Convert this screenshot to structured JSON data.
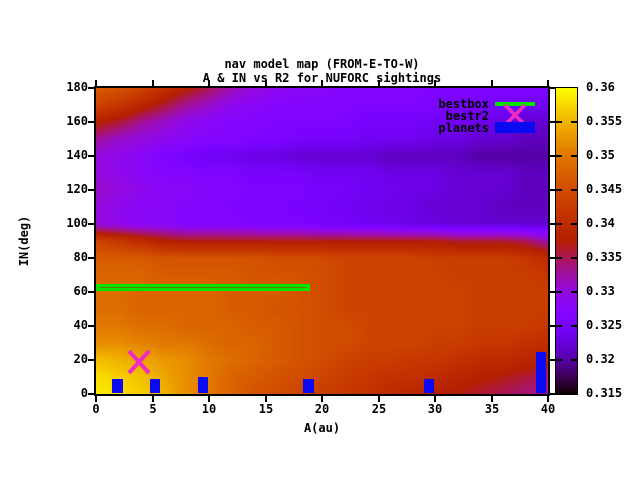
{
  "title": {
    "line1": "nav model map (FROM-E-TO-W)",
    "line2": "A & IN vs R2 for NUFORC sightings"
  },
  "chart_data": {
    "type": "heatmap",
    "xlabel": "A(au)",
    "ylabel": "IN(deg)",
    "xlim": [
      0,
      40
    ],
    "ylim": [
      0,
      180
    ],
    "clim": [
      0.315,
      0.36
    ],
    "xticks": [
      0,
      5,
      10,
      15,
      20,
      25,
      30,
      35,
      40
    ],
    "yticks": [
      0,
      20,
      40,
      60,
      80,
      100,
      120,
      140,
      160,
      180
    ],
    "colorbar_tick_values": [
      0.36,
      0.355,
      0.35,
      0.345,
      0.34,
      0.335,
      0.33,
      0.325,
      0.32,
      0.315
    ],
    "colorbar_tick_labels": [
      "0.36",
      "0.355",
      "0.35",
      "0.345",
      "0.34",
      "0.335",
      "0.33",
      "0.325",
      "0.32",
      "0.315"
    ],
    "palette": "gnuplot-default black-purple-violet-red-orange-yellow",
    "grid_x": [
      0,
      2,
      4,
      6,
      8,
      10,
      12,
      14,
      16,
      18,
      20,
      22,
      24,
      26,
      28,
      30,
      32,
      34,
      36,
      38,
      40
    ],
    "grid_y_top_to_bottom": [
      180,
      170,
      160,
      150,
      140,
      130,
      120,
      110,
      100,
      90,
      80,
      70,
      60,
      50,
      40,
      30,
      20,
      10,
      0
    ],
    "values_rows_y180_to_y0": [
      [
        0.347,
        0.346,
        0.344,
        0.341,
        0.338,
        0.335,
        0.332,
        0.33,
        0.329,
        0.328,
        0.328,
        0.327,
        0.327,
        0.327,
        0.327,
        0.326,
        0.326,
        0.326,
        0.326,
        0.326,
        0.326
      ],
      [
        0.344,
        0.342,
        0.339,
        0.336,
        0.333,
        0.331,
        0.329,
        0.328,
        0.327,
        0.327,
        0.327,
        0.327,
        0.326,
        0.326,
        0.326,
        0.326,
        0.325,
        0.325,
        0.325,
        0.324,
        0.324
      ],
      [
        0.338,
        0.336,
        0.333,
        0.331,
        0.329,
        0.328,
        0.327,
        0.327,
        0.326,
        0.326,
        0.326,
        0.326,
        0.325,
        0.325,
        0.325,
        0.324,
        0.324,
        0.323,
        0.323,
        0.322,
        0.322
      ],
      [
        0.333,
        0.331,
        0.33,
        0.329,
        0.328,
        0.327,
        0.327,
        0.326,
        0.326,
        0.325,
        0.325,
        0.325,
        0.324,
        0.324,
        0.324,
        0.323,
        0.323,
        0.322,
        0.322,
        0.321,
        0.321
      ],
      [
        0.33,
        0.329,
        0.328,
        0.326,
        0.325,
        0.324,
        0.324,
        0.323,
        0.323,
        0.322,
        0.322,
        0.322,
        0.322,
        0.321,
        0.321,
        0.321,
        0.321,
        0.32,
        0.32,
        0.32,
        0.32
      ],
      [
        0.33,
        0.329,
        0.328,
        0.327,
        0.327,
        0.326,
        0.326,
        0.325,
        0.325,
        0.325,
        0.324,
        0.324,
        0.324,
        0.323,
        0.323,
        0.323,
        0.322,
        0.322,
        0.322,
        0.321,
        0.321
      ],
      [
        0.331,
        0.33,
        0.329,
        0.328,
        0.328,
        0.327,
        0.327,
        0.326,
        0.326,
        0.326,
        0.325,
        0.325,
        0.324,
        0.324,
        0.323,
        0.323,
        0.322,
        0.322,
        0.322,
        0.321,
        0.321
      ],
      [
        0.33,
        0.329,
        0.328,
        0.328,
        0.327,
        0.327,
        0.326,
        0.326,
        0.326,
        0.325,
        0.325,
        0.324,
        0.324,
        0.323,
        0.323,
        0.322,
        0.322,
        0.322,
        0.321,
        0.321,
        0.321
      ],
      [
        0.33,
        0.329,
        0.328,
        0.328,
        0.327,
        0.327,
        0.327,
        0.326,
        0.326,
        0.326,
        0.325,
        0.325,
        0.324,
        0.324,
        0.323,
        0.323,
        0.322,
        0.322,
        0.322,
        0.322,
        0.322
      ],
      [
        0.344,
        0.342,
        0.34,
        0.338,
        0.337,
        0.337,
        0.337,
        0.337,
        0.337,
        0.337,
        0.337,
        0.337,
        0.337,
        0.337,
        0.337,
        0.337,
        0.336,
        0.336,
        0.336,
        0.335,
        0.332
      ],
      [
        0.347,
        0.347,
        0.347,
        0.346,
        0.346,
        0.346,
        0.346,
        0.346,
        0.345,
        0.345,
        0.345,
        0.344,
        0.344,
        0.344,
        0.344,
        0.343,
        0.343,
        0.343,
        0.343,
        0.342,
        0.34
      ],
      [
        0.348,
        0.348,
        0.348,
        0.347,
        0.347,
        0.347,
        0.347,
        0.346,
        0.346,
        0.346,
        0.345,
        0.344,
        0.344,
        0.344,
        0.344,
        0.344,
        0.343,
        0.343,
        0.343,
        0.343,
        0.342
      ],
      [
        0.349,
        0.349,
        0.348,
        0.348,
        0.348,
        0.348,
        0.347,
        0.347,
        0.347,
        0.346,
        0.345,
        0.344,
        0.344,
        0.344,
        0.344,
        0.344,
        0.344,
        0.343,
        0.343,
        0.343,
        0.343
      ],
      [
        0.349,
        0.349,
        0.348,
        0.348,
        0.348,
        0.348,
        0.347,
        0.347,
        0.346,
        0.346,
        0.345,
        0.344,
        0.344,
        0.344,
        0.344,
        0.344,
        0.344,
        0.343,
        0.343,
        0.343,
        0.343
      ],
      [
        0.35,
        0.35,
        0.349,
        0.349,
        0.348,
        0.348,
        0.348,
        0.347,
        0.347,
        0.346,
        0.345,
        0.345,
        0.344,
        0.344,
        0.344,
        0.344,
        0.344,
        0.343,
        0.343,
        0.343,
        0.342
      ],
      [
        0.352,
        0.352,
        0.351,
        0.35,
        0.35,
        0.349,
        0.348,
        0.348,
        0.347,
        0.346,
        0.345,
        0.345,
        0.344,
        0.344,
        0.344,
        0.343,
        0.343,
        0.342,
        0.342,
        0.341,
        0.34
      ],
      [
        0.356,
        0.355,
        0.354,
        0.353,
        0.352,
        0.35,
        0.349,
        0.348,
        0.347,
        0.346,
        0.345,
        0.344,
        0.343,
        0.343,
        0.342,
        0.342,
        0.341,
        0.34,
        0.34,
        0.339,
        0.338
      ],
      [
        0.358,
        0.357,
        0.356,
        0.354,
        0.352,
        0.35,
        0.348,
        0.347,
        0.346,
        0.345,
        0.344,
        0.343,
        0.342,
        0.341,
        0.341,
        0.34,
        0.339,
        0.338,
        0.337,
        0.336,
        0.334
      ],
      [
        0.359,
        0.358,
        0.357,
        0.355,
        0.352,
        0.35,
        0.348,
        0.346,
        0.345,
        0.344,
        0.343,
        0.342,
        0.341,
        0.34,
        0.339,
        0.338,
        0.337,
        0.336,
        0.335,
        0.334,
        0.333
      ]
    ],
    "overlays": {
      "bestbox": {
        "x0": 0,
        "x1": 18.9,
        "y0": 60.5,
        "y1": 64.7,
        "color": "#00e400",
        "fill": "#6e7600"
      },
      "bestr2": {
        "x": 3.8,
        "y": 18.8,
        "color": "#ee2cc4"
      },
      "planets": {
        "color": "#0a0af0",
        "bar_width_au": 0.9,
        "bars": [
          {
            "x": 1.9,
            "height_deg": 9
          },
          {
            "x": 5.2,
            "height_deg": 9
          },
          {
            "x": 9.5,
            "height_deg": 10
          },
          {
            "x": 18.8,
            "height_deg": 9
          },
          {
            "x": 29.5,
            "height_deg": 9
          },
          {
            "x": 39.4,
            "height_deg": 25
          }
        ]
      }
    },
    "legend": {
      "position": "top-right",
      "entries": [
        {
          "label": "bestbox",
          "type": "line",
          "color": "#00e400"
        },
        {
          "label": "bestr2",
          "type": "cross",
          "color": "#ee2cc4"
        },
        {
          "label": "planets",
          "type": "box",
          "color": "#0a0af0"
        }
      ]
    }
  }
}
